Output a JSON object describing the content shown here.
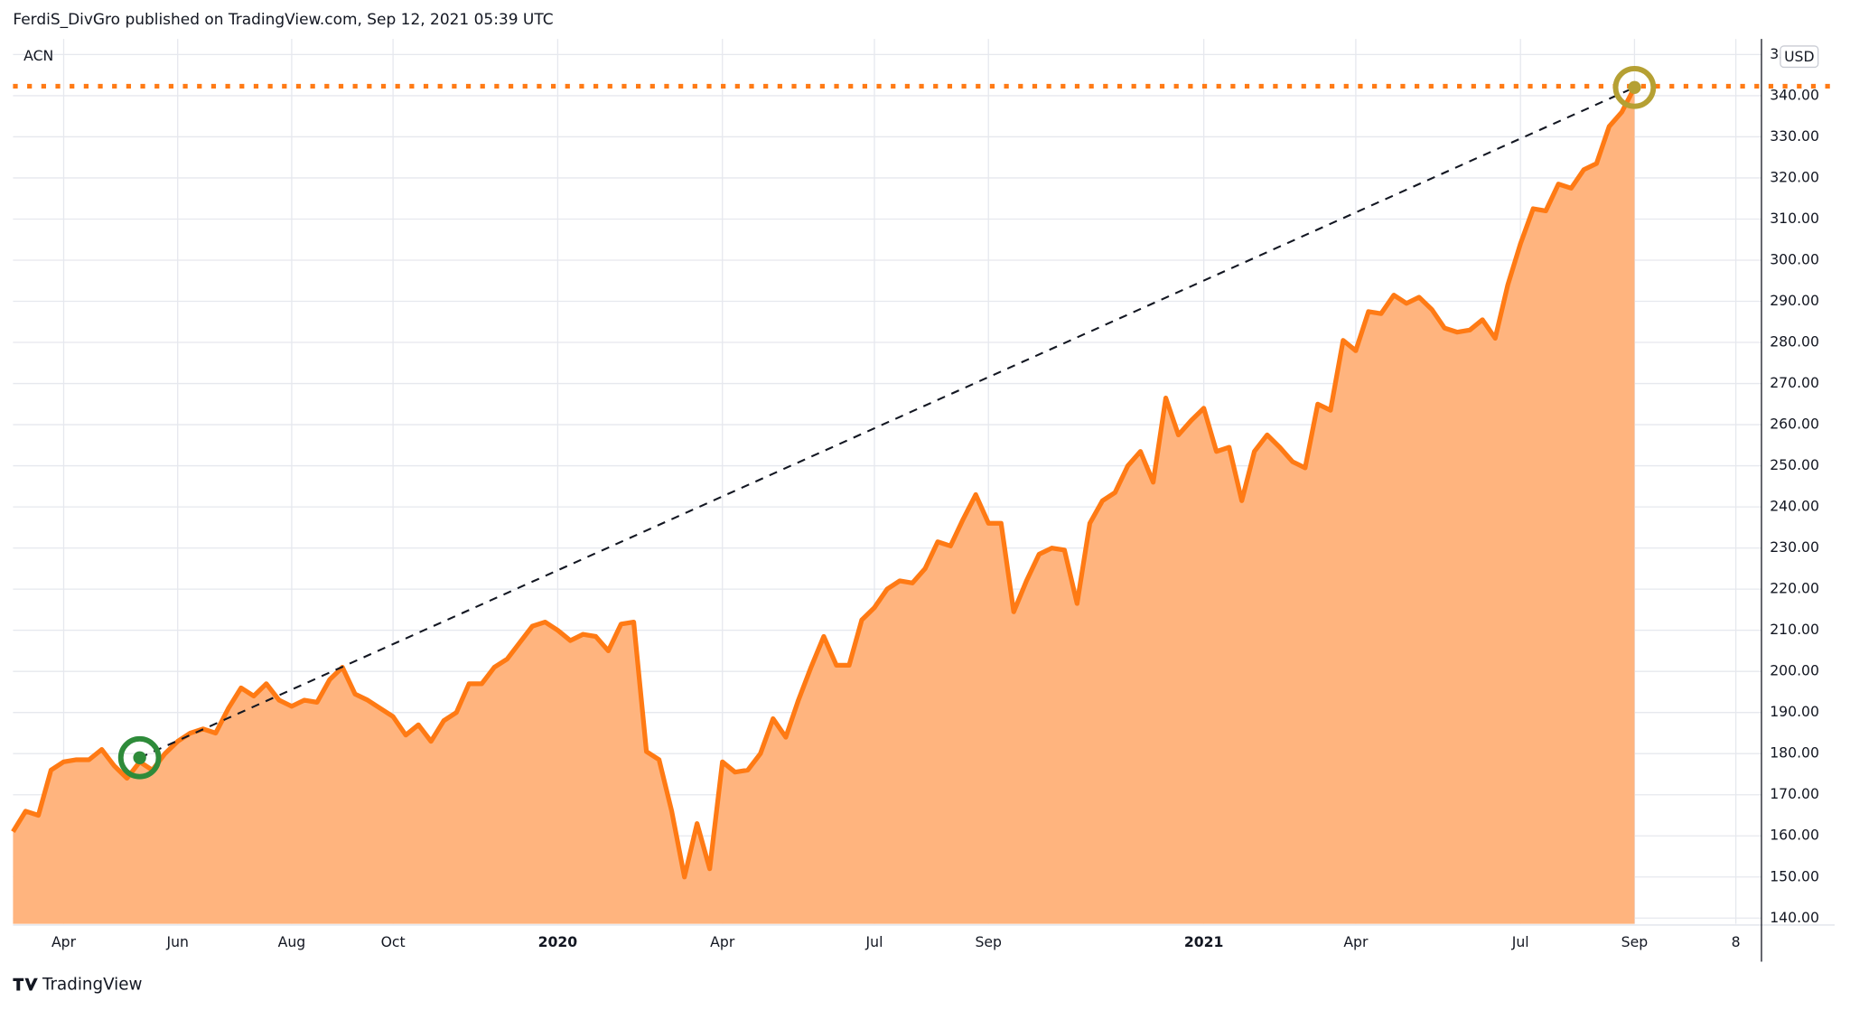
{
  "header": {
    "title": "FerdiS_DivGro published on TradingView.com, Sep 12, 2021 05:39 UTC"
  },
  "footer": {
    "brand": "TradingView"
  },
  "chart_data": {
    "type": "area",
    "symbol": "ACN",
    "currency": "USD",
    "categories": [
      null,
      null,
      null,
      null,
      "Apr",
      null,
      null,
      null,
      null,
      null,
      null,
      null,
      null,
      "Jun",
      null,
      null,
      null,
      null,
      null,
      null,
      null,
      null,
      "Aug",
      null,
      null,
      null,
      null,
      null,
      null,
      null,
      "Oct",
      null,
      null,
      null,
      null,
      null,
      null,
      null,
      null,
      null,
      null,
      null,
      null,
      "2020",
      null,
      null,
      null,
      null,
      null,
      null,
      null,
      null,
      null,
      null,
      null,
      null,
      "Apr",
      null,
      null,
      null,
      null,
      null,
      null,
      null,
      null,
      null,
      null,
      null,
      "Jul",
      null,
      null,
      null,
      null,
      null,
      null,
      null,
      null,
      "Sep",
      null,
      null,
      null,
      null,
      null,
      null,
      null,
      null,
      null,
      null,
      null,
      null,
      null,
      null,
      null,
      null,
      "2021",
      null,
      null,
      null,
      null,
      null,
      null,
      null,
      null,
      null,
      null,
      null,
      "Apr",
      null,
      null,
      null,
      null,
      null,
      null,
      null,
      null,
      null,
      null,
      null,
      null,
      "Jul",
      null,
      null,
      null,
      null,
      null,
      null,
      null,
      null,
      "Sep",
      null,
      null,
      null,
      null,
      null,
      null,
      null,
      "8",
      null
    ],
    "series": [
      {
        "name": "ACN",
        "color": "#ff7a14",
        "fill": "#ffb47e",
        "values": [
          161,
          166,
          165,
          176,
          178,
          178.5,
          178.5,
          181,
          177,
          174,
          178,
          176,
          180,
          183,
          185,
          186,
          185,
          191,
          196,
          194,
          197,
          193,
          191.5,
          193,
          192.5,
          198,
          201,
          194.5,
          193,
          191,
          189,
          184.5,
          187,
          183,
          188,
          190,
          197,
          197,
          201,
          203,
          207,
          211,
          212,
          210,
          207.5,
          209,
          208.5,
          205,
          211.5,
          212,
          180.5,
          178.5,
          166,
          150,
          163,
          152,
          178,
          175.5,
          176,
          180,
          188.5,
          184,
          193,
          201,
          208.5,
          201.5,
          201.5,
          212.5,
          215.5,
          220,
          222,
          221.5,
          225,
          231.5,
          230.5,
          237,
          243,
          236,
          236,
          214.5,
          222,
          228.5,
          230,
          229.5,
          216.5,
          236,
          241.5,
          243.5,
          250,
          253.5,
          246,
          266.5,
          257.5,
          261,
          264,
          253.5,
          254.5,
          241.5,
          253.5,
          257.5,
          254.5,
          251,
          249.5,
          265,
          263.5,
          280.5,
          278,
          287.5,
          287,
          291.5,
          289.5,
          291,
          288,
          283.5,
          282.5,
          283,
          285.5,
          281,
          294,
          304,
          312.5,
          312,
          318.5,
          317.5,
          322,
          323.5,
          332.5,
          336,
          342,
          null,
          null,
          null,
          null,
          null,
          null,
          null,
          null,
          null
        ]
      }
    ],
    "ylim": [
      138.6,
      353.8
    ],
    "yticks": [
      {
        "value": 140,
        "label": "140.00"
      },
      {
        "value": 150,
        "label": "150.00"
      },
      {
        "value": 160,
        "label": "160.00"
      },
      {
        "value": 170,
        "label": "170.00"
      },
      {
        "value": 180,
        "label": "180.00"
      },
      {
        "value": 190,
        "label": "190.00"
      },
      {
        "value": 200,
        "label": "200.00"
      },
      {
        "value": 210,
        "label": "210.00"
      },
      {
        "value": 220,
        "label": "220.00"
      },
      {
        "value": 230,
        "label": "230.00"
      },
      {
        "value": 240,
        "label": "240.00"
      },
      {
        "value": 250,
        "label": "250.00"
      },
      {
        "value": 260,
        "label": "260.00"
      },
      {
        "value": 270,
        "label": "270.00"
      },
      {
        "value": 280,
        "label": "280.00"
      },
      {
        "value": 290,
        "label": "290.00"
      },
      {
        "value": 300,
        "label": "300.00"
      },
      {
        "value": 310,
        "label": "310.00"
      },
      {
        "value": 320,
        "label": "320.00"
      },
      {
        "value": 330,
        "label": "330.00"
      },
      {
        "value": 340,
        "label": "340.00"
      },
      {
        "value": 350,
        "label": "350.00"
      }
    ],
    "grid": true,
    "reference_line": {
      "value": 342.3,
      "color": "#ff7a14"
    },
    "markers": [
      {
        "index": 10,
        "value": 179,
        "color": "#2e8b3a"
      },
      {
        "index": 128,
        "value": 342,
        "color": "#b5a033"
      }
    ]
  }
}
